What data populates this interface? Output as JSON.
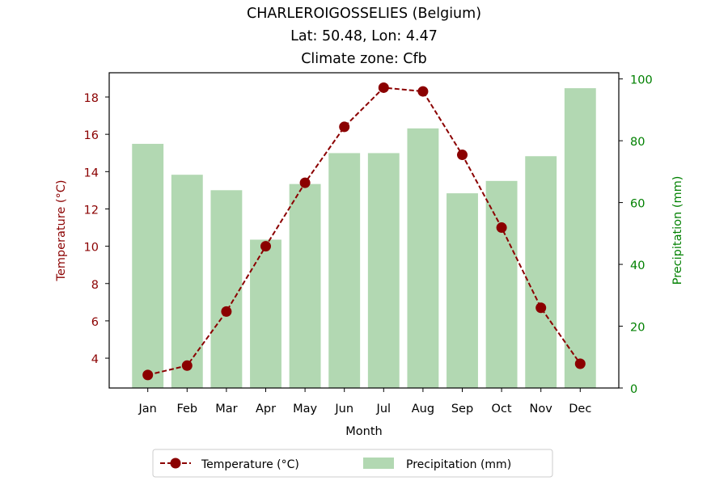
{
  "chart_data": {
    "type": "bar",
    "title_lines": [
      "CHARLEROIGOSSELIES (Belgium)",
      "Lat: 50.48, Lon: 4.47",
      "Climate zone: Cfb"
    ],
    "xlabel": "Month",
    "categories": [
      "Jan",
      "Feb",
      "Mar",
      "Apr",
      "May",
      "Jun",
      "Jul",
      "Aug",
      "Sep",
      "Oct",
      "Nov",
      "Dec"
    ],
    "y_left": {
      "label": "Temperature (°C)",
      "ylim": [
        2.4,
        19.3
      ],
      "ticks": [
        4,
        6,
        8,
        10,
        12,
        14,
        16,
        18
      ],
      "color": "#8b0000"
    },
    "y_right": {
      "label": "Precipitation (mm)",
      "ylim": [
        0,
        102
      ],
      "ticks": [
        0,
        20,
        40,
        60,
        80,
        100
      ],
      "color": "#008000"
    },
    "series": [
      {
        "name": "Temperature (°C)",
        "type": "line",
        "axis": "left",
        "style": "dashed",
        "marker": "circle",
        "color": "#8b0000",
        "values": [
          3.1,
          3.6,
          6.5,
          10.0,
          13.4,
          16.4,
          18.5,
          18.3,
          14.9,
          11.0,
          6.7,
          3.7
        ]
      },
      {
        "name": "Precipitation (mm)",
        "type": "bar",
        "axis": "right",
        "color": "#b2d8b2",
        "values": [
          79,
          69,
          64,
          48,
          66,
          76,
          76,
          84,
          63,
          67,
          75,
          97
        ]
      }
    ],
    "legend_position": "bottom-center"
  }
}
